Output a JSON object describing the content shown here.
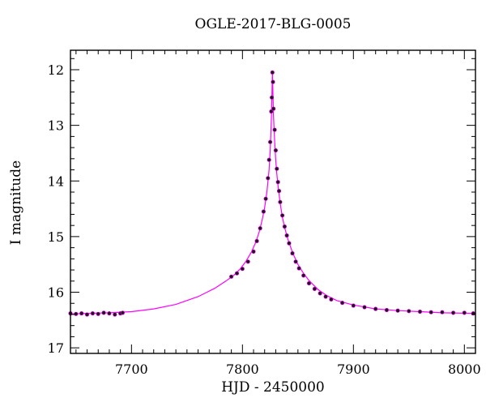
{
  "chart_data": {
    "type": "scatter",
    "title": "OGLE-2017-BLG-0005",
    "xlabel": "HJD - 2450000",
    "ylabel": "I magnitude",
    "xlim": [
      7645,
      8010
    ],
    "ylim": [
      17.1,
      11.65
    ],
    "y_inverted": true,
    "grid": false,
    "x_ticks": [
      "7700",
      "7800",
      "7900",
      "8000"
    ],
    "y_ticks": [
      "12",
      "13",
      "14",
      "15",
      "16",
      "17"
    ],
    "colors": {
      "points": "#1a1a1a",
      "model": "#ff00ff",
      "axes": "#000000"
    },
    "series": [
      {
        "type": "scatter",
        "x": [
          7645,
          7650,
          7655,
          7660,
          7665,
          7670,
          7675,
          7680,
          7685,
          7690,
          7692,
          7790,
          7795,
          7800,
          7805,
          7810,
          7813,
          7816,
          7819,
          7821,
          7823,
          7824,
          7825,
          7826,
          7826.5,
          7827,
          7827.5,
          7828,
          7829,
          7830,
          7831,
          7832,
          7833,
          7834,
          7836,
          7838,
          7840,
          7842,
          7845,
          7848,
          7851,
          7855,
          7860,
          7865,
          7870,
          7875,
          7880,
          7890,
          7900,
          7910,
          7920,
          7930,
          7940,
          7950,
          7960,
          7970,
          7980,
          7990,
          8000,
          8008
        ],
        "y": [
          16.38,
          16.39,
          16.38,
          16.4,
          16.38,
          16.39,
          16.37,
          16.38,
          16.4,
          16.38,
          16.37,
          15.72,
          15.66,
          15.58,
          15.45,
          15.27,
          15.08,
          14.85,
          14.55,
          14.32,
          13.95,
          13.62,
          13.3,
          12.75,
          12.5,
          12.05,
          12.22,
          12.7,
          13.08,
          13.45,
          13.78,
          14.02,
          14.18,
          14.38,
          14.62,
          14.82,
          14.98,
          15.12,
          15.3,
          15.45,
          15.57,
          15.7,
          15.84,
          15.94,
          16.02,
          16.08,
          16.13,
          16.19,
          16.24,
          16.27,
          16.3,
          16.32,
          16.33,
          16.34,
          16.35,
          16.36,
          16.36,
          16.37,
          16.37,
          16.38
        ]
      },
      {
        "type": "line",
        "x": [
          7645,
          7660,
          7680,
          7700,
          7720,
          7740,
          7760,
          7775,
          7785,
          7792,
          7798,
          7803,
          7808,
          7812,
          7815,
          7818,
          7820,
          7822,
          7824,
          7825,
          7826,
          7826.5,
          7827,
          7827.5,
          7828,
          7829,
          7830,
          7831,
          7832,
          7834,
          7836,
          7838,
          7841,
          7845,
          7850,
          7855,
          7860,
          7868,
          7876,
          7885,
          7900,
          7920,
          7940,
          7960,
          7980,
          8010
        ],
        "y": [
          16.39,
          16.38,
          16.37,
          16.35,
          16.3,
          16.22,
          16.08,
          15.93,
          15.8,
          15.7,
          15.58,
          15.45,
          15.28,
          15.1,
          14.92,
          14.68,
          14.48,
          14.2,
          13.8,
          13.45,
          12.95,
          12.55,
          12.05,
          12.45,
          12.85,
          13.3,
          13.62,
          13.88,
          14.08,
          14.4,
          14.65,
          14.84,
          15.05,
          15.28,
          15.5,
          15.66,
          15.79,
          15.95,
          16.06,
          16.15,
          16.23,
          16.3,
          16.33,
          16.35,
          16.37,
          16.38
        ]
      }
    ]
  }
}
